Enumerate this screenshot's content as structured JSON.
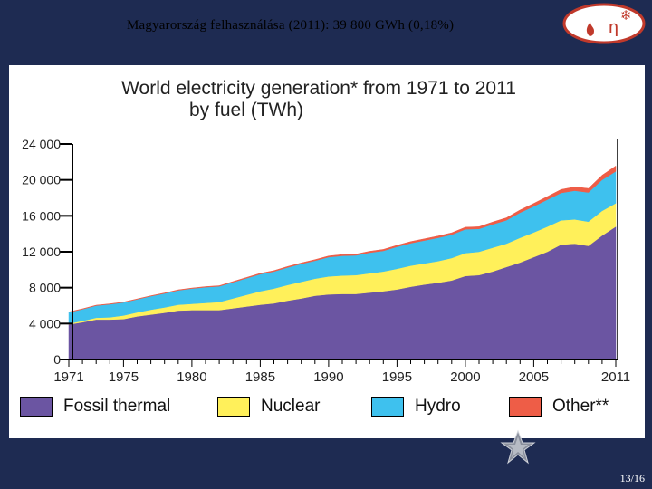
{
  "slide": {
    "title": "Magyarország felhasználása (2011): 39 800 GWh (0,18%)",
    "page_number": "13/16"
  },
  "logo": {
    "glyphs": [
      "η",
      "❄"
    ]
  },
  "chart_data": {
    "type": "area",
    "stacked": true,
    "title_line1": "World electricity generation* from 1971 to 2011",
    "title_line2": "by fuel (TWh)",
    "x": [
      1971,
      1972,
      1973,
      1974,
      1975,
      1976,
      1977,
      1978,
      1979,
      1980,
      1981,
      1982,
      1983,
      1984,
      1985,
      1986,
      1987,
      1988,
      1989,
      1990,
      1991,
      1992,
      1993,
      1994,
      1995,
      1996,
      1997,
      1998,
      1999,
      2000,
      2001,
      2002,
      2003,
      2004,
      2005,
      2006,
      2007,
      2008,
      2009,
      2010,
      2011
    ],
    "xticks": [
      "1971",
      "1975",
      "1980",
      "1985",
      "1990",
      "1995",
      "2000",
      "2005",
      "2011"
    ],
    "yticks": [
      "0",
      "4 000",
      "8 000",
      "12 000",
      "16 000",
      "20 000",
      "24 000"
    ],
    "ylim": [
      0,
      24000
    ],
    "series": [
      {
        "name": "Fossil thermal",
        "color": "#6b55a2",
        "values": [
          3900,
          4150,
          4450,
          4450,
          4500,
          4800,
          5000,
          5200,
          5450,
          5500,
          5500,
          5500,
          5700,
          5900,
          6100,
          6250,
          6550,
          6800,
          7100,
          7250,
          7300,
          7300,
          7450,
          7600,
          7800,
          8100,
          8350,
          8550,
          8800,
          9300,
          9400,
          9800,
          10300,
          10800,
          11400,
          12000,
          12800,
          12900,
          12650,
          13800,
          14800
        ]
      },
      {
        "name": "Nuclear",
        "color": "#fff05a",
        "values": [
          100,
          150,
          200,
          250,
          400,
          450,
          550,
          600,
          650,
          700,
          800,
          900,
          1100,
          1300,
          1500,
          1650,
          1750,
          1850,
          1900,
          2000,
          2050,
          2100,
          2150,
          2200,
          2300,
          2350,
          2350,
          2400,
          2500,
          2550,
          2600,
          2650,
          2600,
          2750,
          2750,
          2800,
          2700,
          2700,
          2700,
          2750,
          2600
        ]
      },
      {
        "name": "Hydro",
        "color": "#3ec1ee",
        "values": [
          1250,
          1300,
          1350,
          1450,
          1450,
          1450,
          1500,
          1550,
          1600,
          1700,
          1750,
          1750,
          1800,
          1850,
          1900,
          1900,
          1950,
          2000,
          2000,
          2150,
          2200,
          2200,
          2300,
          2300,
          2450,
          2500,
          2550,
          2600,
          2600,
          2650,
          2550,
          2600,
          2600,
          2800,
          2900,
          3000,
          3050,
          3200,
          3250,
          3450,
          3550
        ]
      },
      {
        "name": "Other**",
        "color": "#ee5d47",
        "values": [
          50,
          50,
          50,
          50,
          50,
          50,
          50,
          60,
          60,
          60,
          70,
          70,
          80,
          90,
          100,
          100,
          110,
          110,
          120,
          130,
          140,
          140,
          150,
          160,
          170,
          180,
          190,
          200,
          210,
          230,
          240,
          260,
          280,
          300,
          330,
          350,
          380,
          420,
          450,
          520,
          600
        ]
      }
    ],
    "xlabel": "",
    "ylabel": ""
  }
}
